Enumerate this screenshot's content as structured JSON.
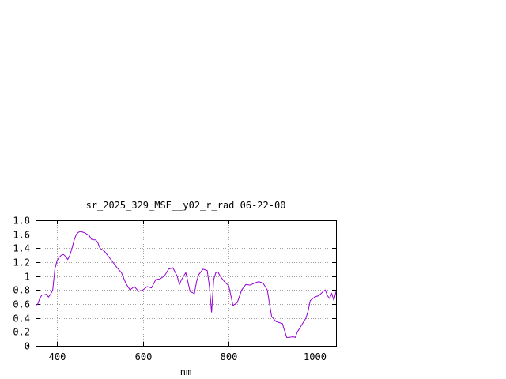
{
  "chart_data": {
    "type": "line",
    "title": "sr_2025_329_MSE__y02_r_rad 06-22-00",
    "xlabel": "nm",
    "ylabel": "",
    "xlim": [
      350,
      1050
    ],
    "ylim": [
      0,
      1.8
    ],
    "x_ticks": [
      400,
      600,
      800,
      1000
    ],
    "x_tick_labels": [
      "400",
      "600",
      "800",
      "1000"
    ],
    "y_ticks": [
      0,
      0.2,
      0.4,
      0.6,
      0.8,
      1,
      1.2,
      1.4,
      1.6,
      1.8
    ],
    "y_tick_labels": [
      "0",
      "0.2",
      "0.4",
      "0.6",
      "0.8",
      "1",
      "1.2",
      "1.4",
      "1.6",
      "1.8"
    ],
    "grid": true,
    "line_color": "#9400d3",
    "series": [
      {
        "x": [
          350,
          355,
          360,
          365,
          370,
          375,
          380,
          385,
          390,
          395,
          400,
          405,
          410,
          415,
          420,
          425,
          430,
          435,
          440,
          445,
          450,
          455,
          460,
          465,
          470,
          475,
          480,
          485,
          490,
          495,
          500,
          505,
          510,
          515,
          520,
          530,
          540,
          550,
          560,
          570,
          580,
          590,
          600,
          610,
          620,
          630,
          640,
          650,
          660,
          670,
          680,
          685,
          690,
          700,
          710,
          720,
          725,
          730,
          740,
          750,
          755,
          760,
          765,
          770,
          775,
          780,
          790,
          800,
          810,
          820,
          830,
          840,
          850,
          860,
          870,
          880,
          890,
          895,
          900,
          910,
          920,
          925,
          930,
          935,
          940,
          950,
          955,
          960,
          970,
          980,
          985,
          990,
          1000,
          1010,
          1020,
          1025,
          1030,
          1035,
          1040,
          1045,
          1050
        ],
        "y": [
          0.58,
          0.6,
          0.68,
          0.73,
          0.73,
          0.74,
          0.7,
          0.74,
          0.8,
          1.1,
          1.22,
          1.27,
          1.3,
          1.31,
          1.28,
          1.24,
          1.3,
          1.4,
          1.52,
          1.6,
          1.63,
          1.64,
          1.63,
          1.62,
          1.6,
          1.58,
          1.53,
          1.52,
          1.52,
          1.48,
          1.4,
          1.38,
          1.36,
          1.32,
          1.28,
          1.2,
          1.12,
          1.05,
          0.9,
          0.8,
          0.85,
          0.78,
          0.8,
          0.85,
          0.83,
          0.95,
          0.96,
          1.0,
          1.1,
          1.12,
          1.0,
          0.88,
          0.95,
          1.05,
          0.78,
          0.75,
          0.92,
          1.02,
          1.1,
          1.08,
          0.85,
          0.48,
          0.95,
          1.05,
          1.06,
          1.0,
          0.92,
          0.86,
          0.58,
          0.62,
          0.8,
          0.88,
          0.87,
          0.9,
          0.92,
          0.9,
          0.8,
          0.6,
          0.42,
          0.35,
          0.33,
          0.32,
          0.22,
          0.12,
          0.12,
          0.13,
          0.12,
          0.2,
          0.3,
          0.4,
          0.5,
          0.65,
          0.7,
          0.72,
          0.78,
          0.8,
          0.72,
          0.68,
          0.75,
          0.65,
          0.78
        ]
      }
    ]
  }
}
